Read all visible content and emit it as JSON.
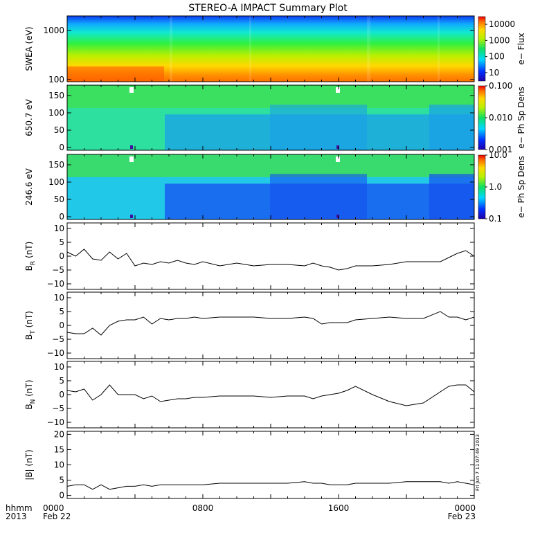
{
  "title": "STEREO-A IMPACT Summary Plot",
  "time_label": {
    "line1": "hhmm",
    "line2": "2013"
  },
  "x_ticks": [
    {
      "time": "0000",
      "date": "Feb 22",
      "hour": 0
    },
    {
      "time": "0800",
      "date": "",
      "hour": 8
    },
    {
      "time": "1600",
      "date": "",
      "hour": 16
    },
    {
      "time": "0000",
      "date": "Feb 23",
      "hour": 24
    }
  ],
  "timestamp": "Fri Jun  7 11:07:49 2013",
  "colors": {
    "trace": "#000000",
    "axis": "#000000"
  },
  "chart_data": [
    {
      "type": "heatmap",
      "id": "swea",
      "ylabel": "SWEA (eV)",
      "yscale": "log",
      "ylim": [
        90,
        2000
      ],
      "yticks": [
        {
          "v": 100,
          "l": "100"
        },
        {
          "v": 1000,
          "l": "1000"
        }
      ],
      "xlim": [
        0,
        24
      ],
      "colorbar": {
        "label": "e− Flux",
        "scale": "log",
        "range": [
          3,
          30000
        ],
        "ticks": [
          {
            "v": 10,
            "l": "10"
          },
          {
            "v": 100,
            "l": "100"
          },
          {
            "v": 1000,
            "l": "1000"
          },
          {
            "v": 10000,
            "l": "10000"
          }
        ]
      }
    },
    {
      "type": "heatmap",
      "id": "pad650",
      "ylabel": "650.7 eV",
      "ylim": [
        -8,
        180
      ],
      "yticks": [
        {
          "v": 0,
          "l": "0"
        },
        {
          "v": 50,
          "l": "50"
        },
        {
          "v": 100,
          "l": "100"
        },
        {
          "v": 150,
          "l": "150"
        }
      ],
      "xlim": [
        0,
        24
      ],
      "colorbar": {
        "label": "e− Ph Sp Dens",
        "scale": "log",
        "range": [
          0.001,
          0.1
        ],
        "ticks": [
          {
            "v": 0.001,
            "l": "0.001"
          },
          {
            "v": 0.01,
            "l": "0.010"
          },
          {
            "v": 0.1,
            "l": "0.100"
          }
        ]
      }
    },
    {
      "type": "heatmap",
      "id": "pad246",
      "ylabel": "246.6 eV",
      "ylim": [
        -8,
        180
      ],
      "yticks": [
        {
          "v": 0,
          "l": "0"
        },
        {
          "v": 50,
          "l": "50"
        },
        {
          "v": 100,
          "l": "100"
        },
        {
          "v": 150,
          "l": "150"
        }
      ],
      "xlim": [
        0,
        24
      ],
      "colorbar": {
        "label": "e− Ph Sp Dens",
        "scale": "log",
        "range": [
          0.1,
          10
        ],
        "ticks": [
          {
            "v": 0.1,
            "l": "0.1"
          },
          {
            "v": 1,
            "l": "1.0"
          },
          {
            "v": 10,
            "l": "10.0"
          }
        ]
      }
    },
    {
      "type": "line",
      "id": "br",
      "ylabel": "B",
      "ylabel_sub": "R",
      "ylabel_unit": " (nT)",
      "ylim": [
        -12,
        12
      ],
      "yticks": [
        {
          "v": -10,
          "l": "−10"
        },
        {
          "v": -5,
          "l": "−5"
        },
        {
          "v": 0,
          "l": "0"
        },
        {
          "v": 5,
          "l": "5"
        },
        {
          "v": 10,
          "l": "10"
        }
      ],
      "xlim": [
        0,
        24
      ],
      "x": [
        0,
        0.5,
        1,
        1.5,
        2,
        2.5,
        3,
        3.5,
        4,
        4.5,
        5,
        5.5,
        6,
        6.5,
        7,
        7.5,
        8,
        9,
        10,
        11,
        12,
        13,
        14,
        14.5,
        15,
        15.5,
        16,
        16.5,
        17,
        18,
        19,
        20,
        21,
        22,
        22.5,
        23,
        23.5,
        24
      ],
      "y": [
        1.5,
        0,
        2.5,
        -1,
        -1.5,
        1.5,
        -1,
        1,
        -3.5,
        -2.5,
        -3,
        -2,
        -2.5,
        -1.5,
        -2.5,
        -3,
        -2,
        -3.5,
        -2.5,
        -3.5,
        -3,
        -3,
        -3.5,
        -2.5,
        -3.5,
        -4,
        -5,
        -4.5,
        -3.5,
        -3.5,
        -3,
        -2,
        -2,
        -2,
        -0.5,
        1,
        2,
        0
      ]
    },
    {
      "type": "line",
      "id": "bt",
      "ylabel": "B",
      "ylabel_sub": "T",
      "ylabel_unit": " (nT)",
      "ylim": [
        -12,
        12
      ],
      "yticks": [
        {
          "v": -10,
          "l": "−10"
        },
        {
          "v": -5,
          "l": "−5"
        },
        {
          "v": 0,
          "l": "0"
        },
        {
          "v": 5,
          "l": "5"
        },
        {
          "v": 10,
          "l": "10"
        }
      ],
      "xlim": [
        0,
        24
      ],
      "x": [
        0,
        0.5,
        1,
        1.5,
        2,
        2.5,
        3,
        3.5,
        4,
        4.5,
        5,
        5.5,
        6,
        6.5,
        7,
        7.5,
        8,
        9,
        10,
        11,
        12,
        13,
        14,
        14.5,
        15,
        15.5,
        16,
        16.5,
        17,
        18,
        19,
        20,
        21,
        22,
        22.5,
        23,
        23.5,
        24
      ],
      "y": [
        -2.5,
        -3,
        -3,
        -1,
        -3.5,
        0,
        1.5,
        2,
        2,
        3,
        0.5,
        2.5,
        2,
        2.5,
        2.5,
        3,
        2.5,
        3,
        3,
        3,
        2.5,
        2.5,
        3,
        2.5,
        0.5,
        1,
        1,
        1,
        2,
        2.5,
        3,
        2.5,
        2.5,
        5,
        3,
        3,
        2,
        3
      ]
    },
    {
      "type": "line",
      "id": "bn",
      "ylabel": "B",
      "ylabel_sub": "N",
      "ylabel_unit": " (nT)",
      "ylim": [
        -12,
        12
      ],
      "yticks": [
        {
          "v": -10,
          "l": "−10"
        },
        {
          "v": -5,
          "l": "−5"
        },
        {
          "v": 0,
          "l": "0"
        },
        {
          "v": 5,
          "l": "5"
        },
        {
          "v": 10,
          "l": "10"
        }
      ],
      "xlim": [
        0,
        24
      ],
      "x": [
        0,
        0.5,
        1,
        1.5,
        2,
        2.5,
        3,
        3.5,
        4,
        4.5,
        5,
        5.5,
        6,
        6.5,
        7,
        7.5,
        8,
        9,
        10,
        11,
        12,
        13,
        14,
        14.5,
        15,
        15.5,
        16,
        16.5,
        17,
        18,
        19,
        20,
        21,
        22,
        22.5,
        23,
        23.5,
        24
      ],
      "y": [
        1.5,
        1,
        2,
        -2,
        0,
        3.5,
        0,
        0,
        0,
        -1.5,
        -0.5,
        -2.5,
        -2,
        -1.5,
        -1.5,
        -1,
        -1,
        -0.5,
        -0.5,
        -0.5,
        -1,
        -0.5,
        -0.5,
        -1.5,
        -0.5,
        0,
        0.5,
        1.5,
        3,
        0,
        -2.5,
        -4,
        -3,
        1,
        3,
        3.5,
        3.5,
        1
      ]
    },
    {
      "type": "line",
      "id": "bmag",
      "ylabel": "|B| (nT)",
      "ylim": [
        -1,
        21
      ],
      "yticks": [
        {
          "v": 0,
          "l": "0"
        },
        {
          "v": 5,
          "l": "5"
        },
        {
          "v": 10,
          "l": "10"
        },
        {
          "v": 15,
          "l": "15"
        },
        {
          "v": 20,
          "l": "20"
        }
      ],
      "xlim": [
        0,
        24
      ],
      "x": [
        0,
        0.5,
        1,
        1.5,
        2,
        2.5,
        3,
        3.5,
        4,
        4.5,
        5,
        5.5,
        6,
        6.5,
        7,
        7.5,
        8,
        9,
        10,
        11,
        12,
        13,
        14,
        14.5,
        15,
        15.5,
        16,
        16.5,
        17,
        18,
        19,
        20,
        21,
        22,
        22.5,
        23,
        23.5,
        24
      ],
      "y": [
        3,
        3.5,
        3.5,
        2,
        3.5,
        2,
        2.5,
        3,
        3,
        3.5,
        3,
        3.5,
        3.5,
        3.5,
        3.5,
        3.5,
        3.5,
        4,
        4,
        4,
        4,
        4,
        4.5,
        4,
        4,
        3.5,
        3.5,
        3.5,
        4,
        4,
        4,
        4.5,
        4.5,
        4.5,
        4,
        4.5,
        4,
        3.5
      ]
    }
  ]
}
